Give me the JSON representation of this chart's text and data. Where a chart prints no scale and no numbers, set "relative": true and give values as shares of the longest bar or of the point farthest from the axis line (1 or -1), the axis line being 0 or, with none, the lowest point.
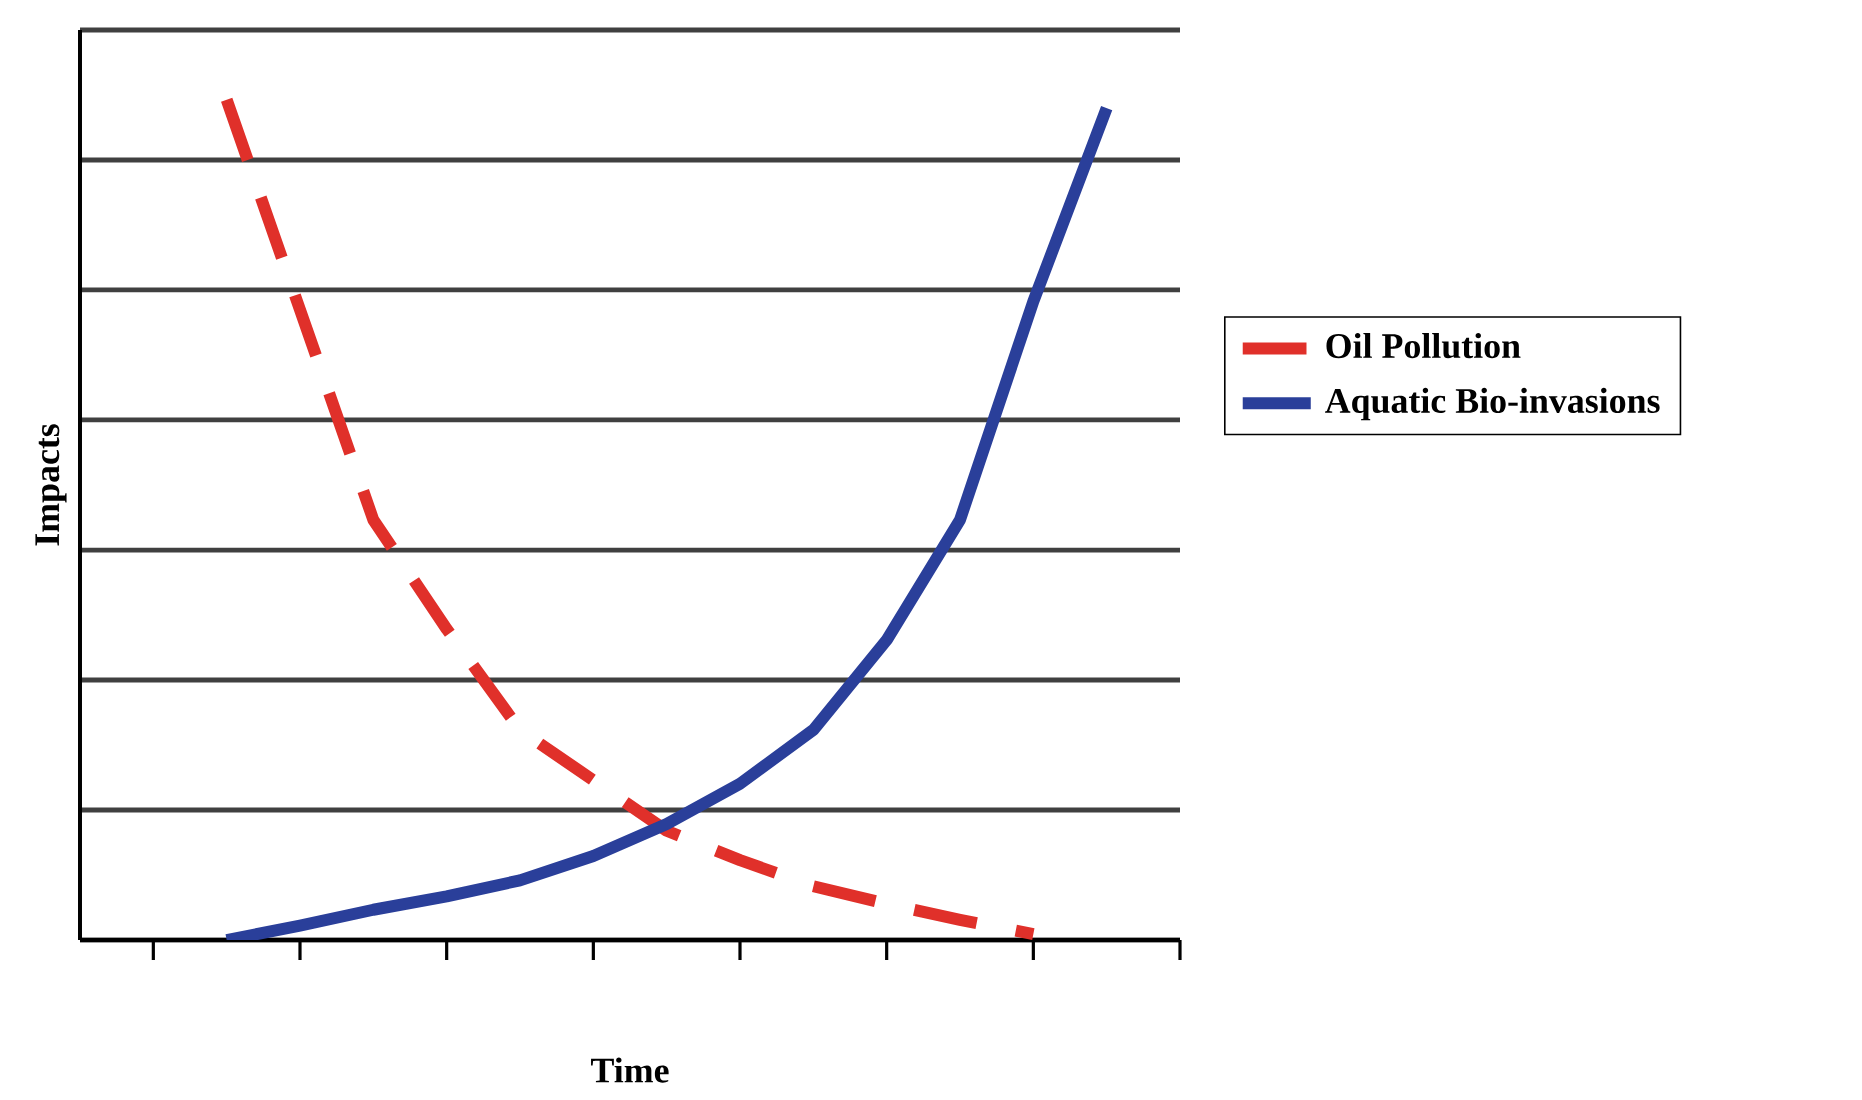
{
  "chart_data": {
    "type": "line",
    "xlabel": "Time",
    "ylabel": "Impacts",
    "relative": true,
    "grid": "y",
    "legend": "right",
    "tick_labels": false,
    "categories": [
      null,
      null,
      null,
      null,
      null,
      null,
      null,
      null,
      null,
      null,
      null,
      null,
      null,
      null,
      null
    ],
    "series": [
      {
        "name": "Oil Pollution",
        "color": "#e0302a",
        "line_style": "dashed",
        "values": [
          null,
          1,
          0.75,
          0.5,
          0.37,
          0.25,
          0.19,
          0.13,
          0.095,
          0.064,
          0.043,
          0.024,
          0.007,
          null,
          null
        ]
      },
      {
        "name": "Aquatic Bio-invasions",
        "color": "#2a3f9a",
        "line_style": "solid",
        "values": [
          null,
          0,
          0.017,
          0.036,
          0.052,
          0.071,
          0.1,
          0.138,
          0.186,
          0.25,
          0.357,
          0.5,
          0.76,
          0.99,
          null
        ]
      }
    ]
  }
}
